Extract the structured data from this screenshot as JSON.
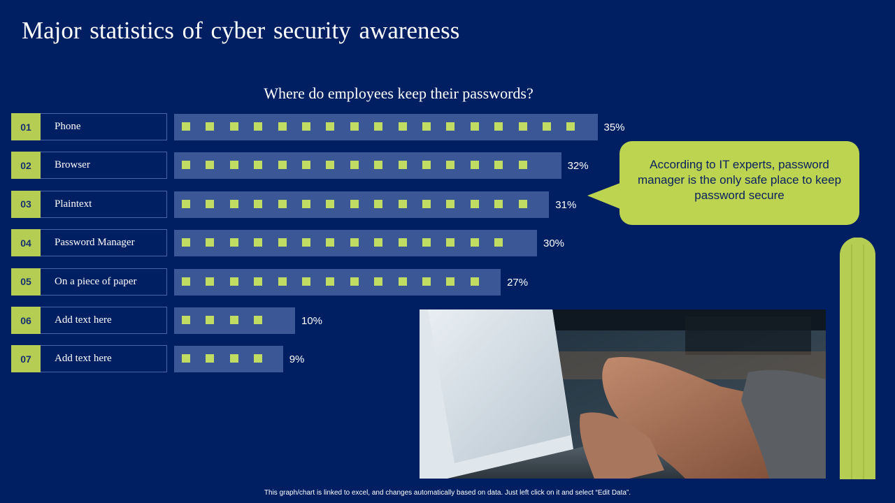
{
  "title": "Major statistics of cyber security awareness",
  "chart_data": {
    "type": "bar",
    "orientation": "horizontal",
    "title": "Where do employees keep their passwords?",
    "numbers": [
      "01",
      "02",
      "03",
      "04",
      "05",
      "06",
      "07"
    ],
    "categories": [
      "Phone",
      "Browser",
      "Plaintext",
      "Password Manager",
      "On a piece of paper",
      "Add text  here",
      "Add text  here"
    ],
    "values": [
      35,
      32,
      31,
      30,
      27,
      10,
      9
    ],
    "value_labels": [
      "35%",
      "32%",
      "31%",
      "30%",
      "27%",
      "10%",
      "9%"
    ],
    "unit": "%",
    "grid": false,
    "legend": "none",
    "colors": {
      "bar": "#3c5796",
      "marker": "#c0dc63",
      "number_box": "#b5cd52"
    }
  },
  "callout": {
    "text": "According to IT experts, password manager is the only safe place to keep password secure",
    "color": "#bcd44f"
  },
  "photo": {
    "icon": "laptop-typing-photo"
  },
  "footer": "This graph/chart is linked to excel,  and changes automatically based on data. Just left click on it and select “Edit Data”.",
  "colors": {
    "background": "#001f63",
    "accent": "#b5cd52"
  }
}
